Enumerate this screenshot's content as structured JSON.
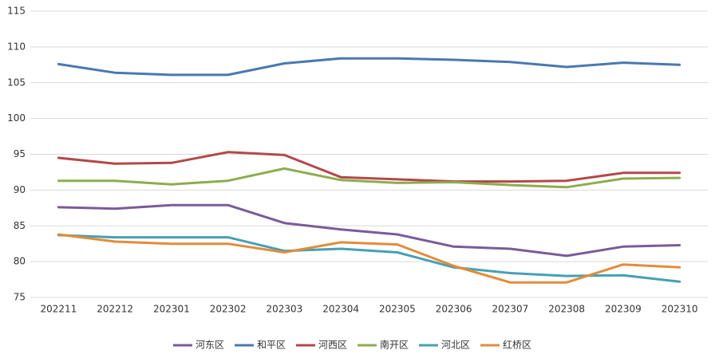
{
  "chart_data": {
    "type": "line",
    "categories": [
      "202211",
      "202212",
      "202301",
      "202302",
      "202303",
      "202304",
      "202305",
      "202306",
      "202307",
      "202308",
      "202309",
      "202310"
    ],
    "series": [
      {
        "name": "河东区",
        "color": "#7a5b9a",
        "values": [
          87.6,
          87.4,
          87.9,
          87.9,
          85.4,
          84.5,
          83.8,
          82.1,
          81.8,
          80.8,
          82.1,
          82.3
        ]
      },
      {
        "name": "和平区",
        "color": "#4a78b2",
        "values": [
          107.6,
          106.4,
          106.1,
          106.1,
          107.7,
          108.4,
          108.4,
          108.2,
          107.9,
          107.2,
          107.8,
          107.5
        ]
      },
      {
        "name": "河西区",
        "color": "#b3484a",
        "values": [
          94.5,
          93.7,
          93.8,
          95.3,
          94.9,
          91.8,
          91.5,
          91.2,
          91.2,
          91.3,
          92.4,
          92.4
        ]
      },
      {
        "name": "南开区",
        "color": "#8dac4f",
        "values": [
          91.3,
          91.3,
          90.8,
          91.3,
          93.0,
          91.4,
          91.0,
          91.1,
          90.7,
          90.4,
          91.6,
          91.7
        ]
      },
      {
        "name": "河北区",
        "color": "#45a0b4",
        "values": [
          83.7,
          83.4,
          83.4,
          83.4,
          81.5,
          81.8,
          81.3,
          79.2,
          78.4,
          78.0,
          78.1,
          77.2
        ]
      },
      {
        "name": "红桥区",
        "color": "#e38b3b",
        "values": [
          83.8,
          82.8,
          82.5,
          82.5,
          81.3,
          82.7,
          82.4,
          79.4,
          77.1,
          77.1,
          79.6,
          79.2
        ]
      }
    ],
    "ylim": [
      75,
      115
    ],
    "yticks": [
      75,
      80,
      85,
      90,
      95,
      100,
      105,
      110,
      115
    ],
    "grid": true,
    "legend": "bottom"
  }
}
